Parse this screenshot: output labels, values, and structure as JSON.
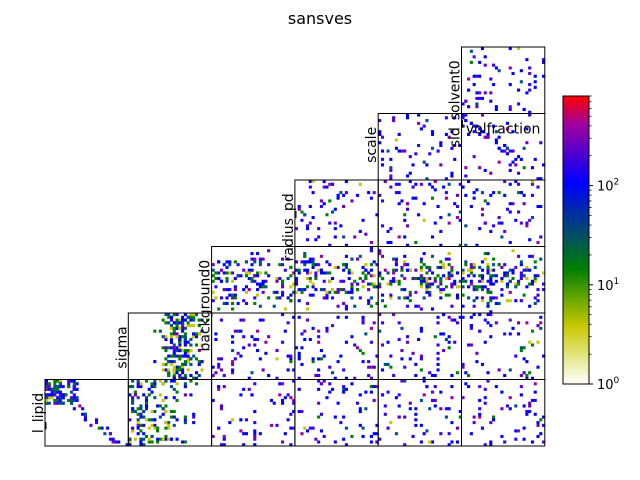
{
  "chart_data": {
    "type": "heatmap",
    "title": "sansves",
    "layout": "lower-triangle pairwise 2D histograms",
    "parameters": [
      "l_lipid",
      "sigma",
      "background0",
      "radius_pd",
      "scale",
      "sld_solvent0",
      "volfraction"
    ],
    "panels": [
      {
        "row": 0,
        "col": 0,
        "density": "dense-corner"
      },
      {
        "row": 0,
        "col": 1,
        "density": "dense-left-column"
      },
      {
        "row": 1,
        "col": 1,
        "density": "dense-cluster"
      },
      {
        "row": 0,
        "col": 2,
        "density": "sparse"
      },
      {
        "row": 1,
        "col": 2,
        "density": "sparse"
      },
      {
        "row": 2,
        "col": 2,
        "density": "medium"
      },
      {
        "row": 0,
        "col": 3,
        "density": "sparse"
      },
      {
        "row": 1,
        "col": 3,
        "density": "sparse"
      },
      {
        "row": 2,
        "col": 3,
        "density": "medium"
      },
      {
        "row": 3,
        "col": 3,
        "density": "sparse"
      },
      {
        "row": 0,
        "col": 4,
        "density": "sparse"
      },
      {
        "row": 1,
        "col": 4,
        "density": "sparse"
      },
      {
        "row": 2,
        "col": 4,
        "density": "medium"
      },
      {
        "row": 3,
        "col": 4,
        "density": "sparse"
      },
      {
        "row": 4,
        "col": 4,
        "density": "sparse"
      },
      {
        "row": 0,
        "col": 5,
        "density": "sparse"
      },
      {
        "row": 1,
        "col": 5,
        "density": "sparse"
      },
      {
        "row": 2,
        "col": 5,
        "density": "medium"
      },
      {
        "row": 3,
        "col": 5,
        "density": "sparse"
      },
      {
        "row": 4,
        "col": 5,
        "density": "diagonal"
      },
      {
        "row": 5,
        "col": 5,
        "density": "sparse"
      }
    ],
    "diagonal_labels": [
      {
        "text": "l_lipid",
        "rotated": true
      },
      {
        "text": "sigma",
        "rotated": true
      },
      {
        "text": "background0",
        "rotated": true
      },
      {
        "text": "radius_pd",
        "rotated": true
      },
      {
        "text": "scale",
        "rotated": true
      },
      {
        "text": "sld_solvent0",
        "rotated": true
      },
      {
        "text": "volfraction",
        "rotated": false
      }
    ],
    "colorbar": {
      "scale": "log",
      "range": [
        1,
        800
      ],
      "colors": [
        "#ffffff",
        "#c8c800",
        "#008000",
        "#0000ff",
        "#a000a0",
        "#ff0000"
      ],
      "ticks": [
        {
          "value": 1,
          "base": "10",
          "exp": "0"
        },
        {
          "value": 10,
          "base": "10",
          "exp": "1"
        },
        {
          "value": 100,
          "base": "10",
          "exp": "2"
        }
      ]
    }
  }
}
